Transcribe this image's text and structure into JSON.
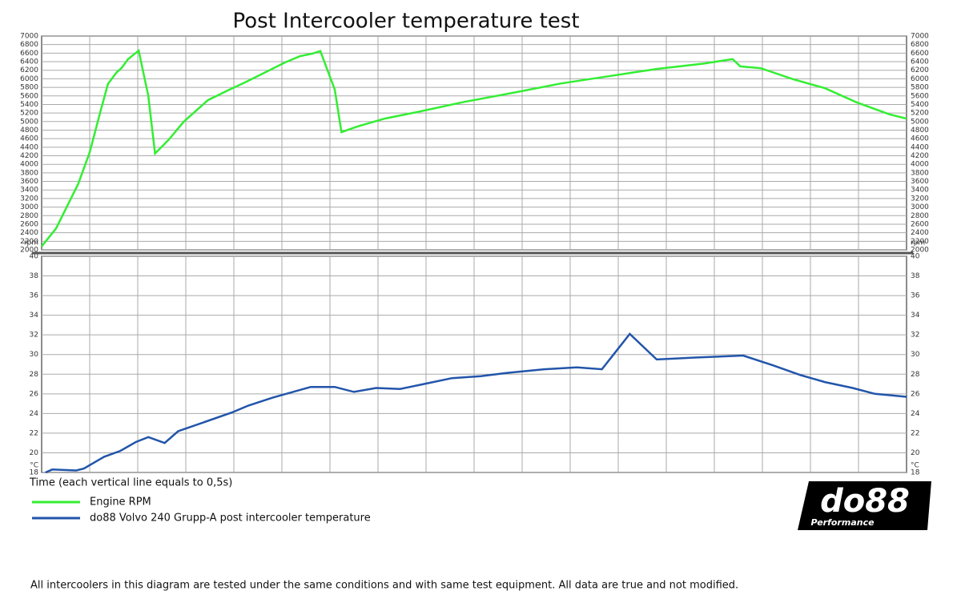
{
  "chart_data": [
    {
      "type": "line",
      "title": "Post Intercooler temperature test",
      "y_unit": "rpm",
      "xlim": [
        0,
        9
      ],
      "ylim": [
        2000,
        7000
      ],
      "yticks": [
        2000,
        2200,
        2400,
        2600,
        2800,
        3000,
        3200,
        3400,
        3600,
        3800,
        4000,
        4200,
        4400,
        4600,
        4800,
        5000,
        5200,
        5400,
        5600,
        5800,
        6000,
        6200,
        6400,
        6600,
        6800,
        7000
      ],
      "x": [
        0,
        0.15,
        0.38,
        0.5,
        0.61,
        0.69,
        0.78,
        0.83,
        0.9,
        1.01,
        1.11,
        1.18,
        1.32,
        1.48,
        1.73,
        1.94,
        2.11,
        2.28,
        2.53,
        2.69,
        2.82,
        2.9,
        3.05,
        3.12,
        3.28,
        3.57,
        3.9,
        4.4,
        4.9,
        5.4,
        5.9,
        6.4,
        6.9,
        7.19,
        7.27,
        7.48,
        7.82,
        8.15,
        8.48,
        8.82,
        9.0
      ],
      "series": [
        {
          "name": "Engine RPM",
          "color": "#33ee33",
          "values": [
            2080,
            2500,
            3540,
            4280,
            5220,
            5880,
            6150,
            6250,
            6460,
            6660,
            5600,
            4250,
            4570,
            5000,
            5500,
            5730,
            5910,
            6100,
            6380,
            6530,
            6590,
            6650,
            5750,
            4750,
            4880,
            5070,
            5220,
            5460,
            5670,
            5890,
            6060,
            6230,
            6360,
            6460,
            6290,
            6250,
            5990,
            5780,
            5450,
            5170,
            5070
          ]
        }
      ],
      "grid": true
    },
    {
      "type": "line",
      "y_unit": "°C",
      "x_label": "Time (each vertical line equals to 0,5s)",
      "xlim": [
        0,
        9
      ],
      "ylim": [
        18,
        40
      ],
      "yticks": [
        18,
        20,
        22,
        24,
        26,
        28,
        30,
        32,
        34,
        36,
        38,
        40
      ],
      "x": [
        0.04,
        0.11,
        0.36,
        0.44,
        0.65,
        0.82,
        0.98,
        1.11,
        1.28,
        1.42,
        1.98,
        2.15,
        2.4,
        2.8,
        3.05,
        3.25,
        3.48,
        3.73,
        3.98,
        4.27,
        4.57,
        4.82,
        5.23,
        5.57,
        5.83,
        6.12,
        6.4,
        6.82,
        7.3,
        7.61,
        7.9,
        8.15,
        8.44,
        8.67,
        9.0
      ],
      "series": [
        {
          "name": "do88 Volvo 240 Grupp-A post intercooler temperature",
          "color": "#2255aa",
          "values": [
            18.0,
            18.3,
            18.2,
            18.4,
            19.6,
            20.2,
            21.1,
            21.6,
            21.0,
            22.2,
            24.1,
            24.8,
            25.6,
            26.7,
            26.7,
            26.2,
            26.6,
            26.5,
            27.0,
            27.6,
            27.8,
            28.1,
            28.5,
            28.7,
            28.5,
            32.1,
            29.5,
            29.7,
            29.9,
            28.9,
            27.9,
            27.2,
            26.6,
            26.0,
            25.7
          ]
        }
      ],
      "grid": true
    }
  ],
  "footnote": "All intercoolers in this diagram are tested under the same conditions and with same test equipment. All data are true and not modified.",
  "logo": {
    "brand": "do88",
    "tagline": "Performance"
  }
}
